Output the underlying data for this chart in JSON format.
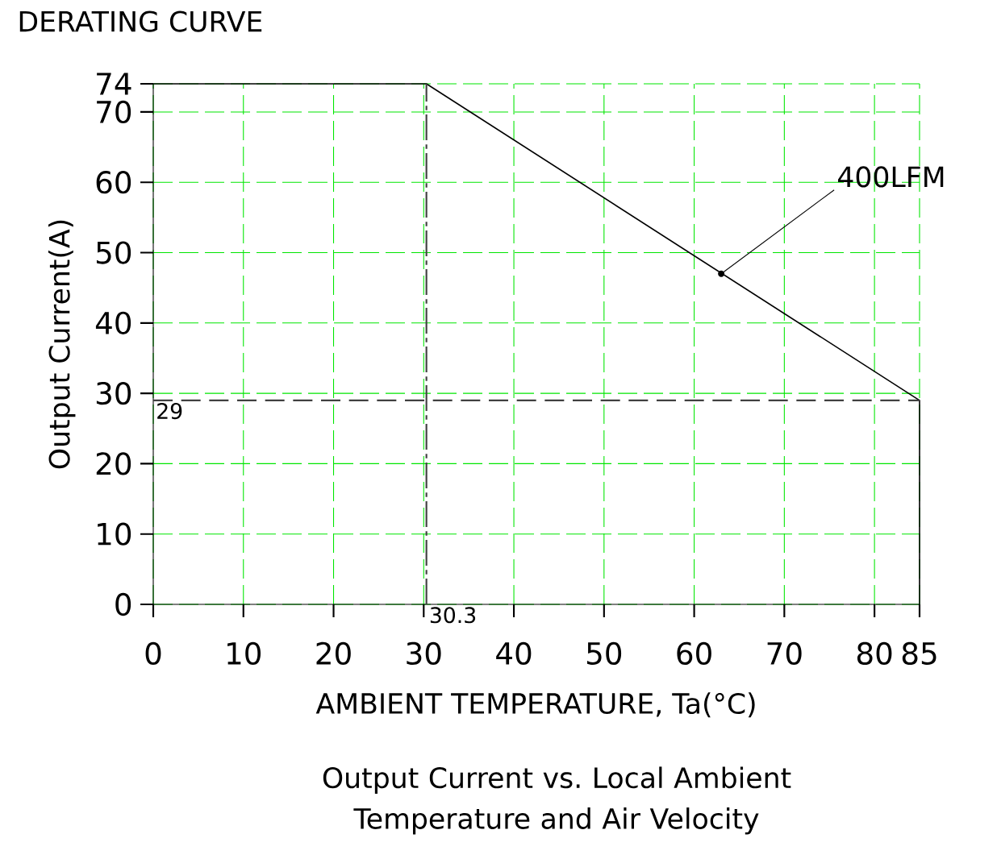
{
  "chart_data": {
    "type": "line",
    "title": "DERATING CURVE",
    "xlabel": "AMBIENT TEMPERATURE, Ta(°C)",
    "ylabel": "Output Current(A)",
    "x": [
      0,
      30.3,
      85,
      85
    ],
    "series": [
      {
        "color": "#000000",
        "values": [
          74,
          74,
          29,
          0
        ]
      }
    ],
    "xlim": [
      0,
      85
    ],
    "ylim": [
      0,
      74
    ],
    "xticks": [
      0,
      10,
      20,
      30,
      40,
      50,
      60,
      70,
      80,
      85
    ],
    "yticks": [
      0,
      10,
      20,
      30,
      40,
      50,
      60,
      70,
      74
    ],
    "grid": true,
    "ref_lines": [
      {
        "axis": "x",
        "value": 30.3,
        "label": "30.3",
        "color": "#404040",
        "line_style": "dashdot"
      },
      {
        "axis": "y",
        "value": 29,
        "label": "29",
        "color": "#404040",
        "line_style": "dashed"
      }
    ],
    "annotations": [
      {
        "text": "400LFM",
        "x": 63,
        "y": 47
      },
      "Output Current vs. Local Ambient Temperature and Air Velocity"
    ],
    "marker": "none",
    "line_style": "solid"
  }
}
